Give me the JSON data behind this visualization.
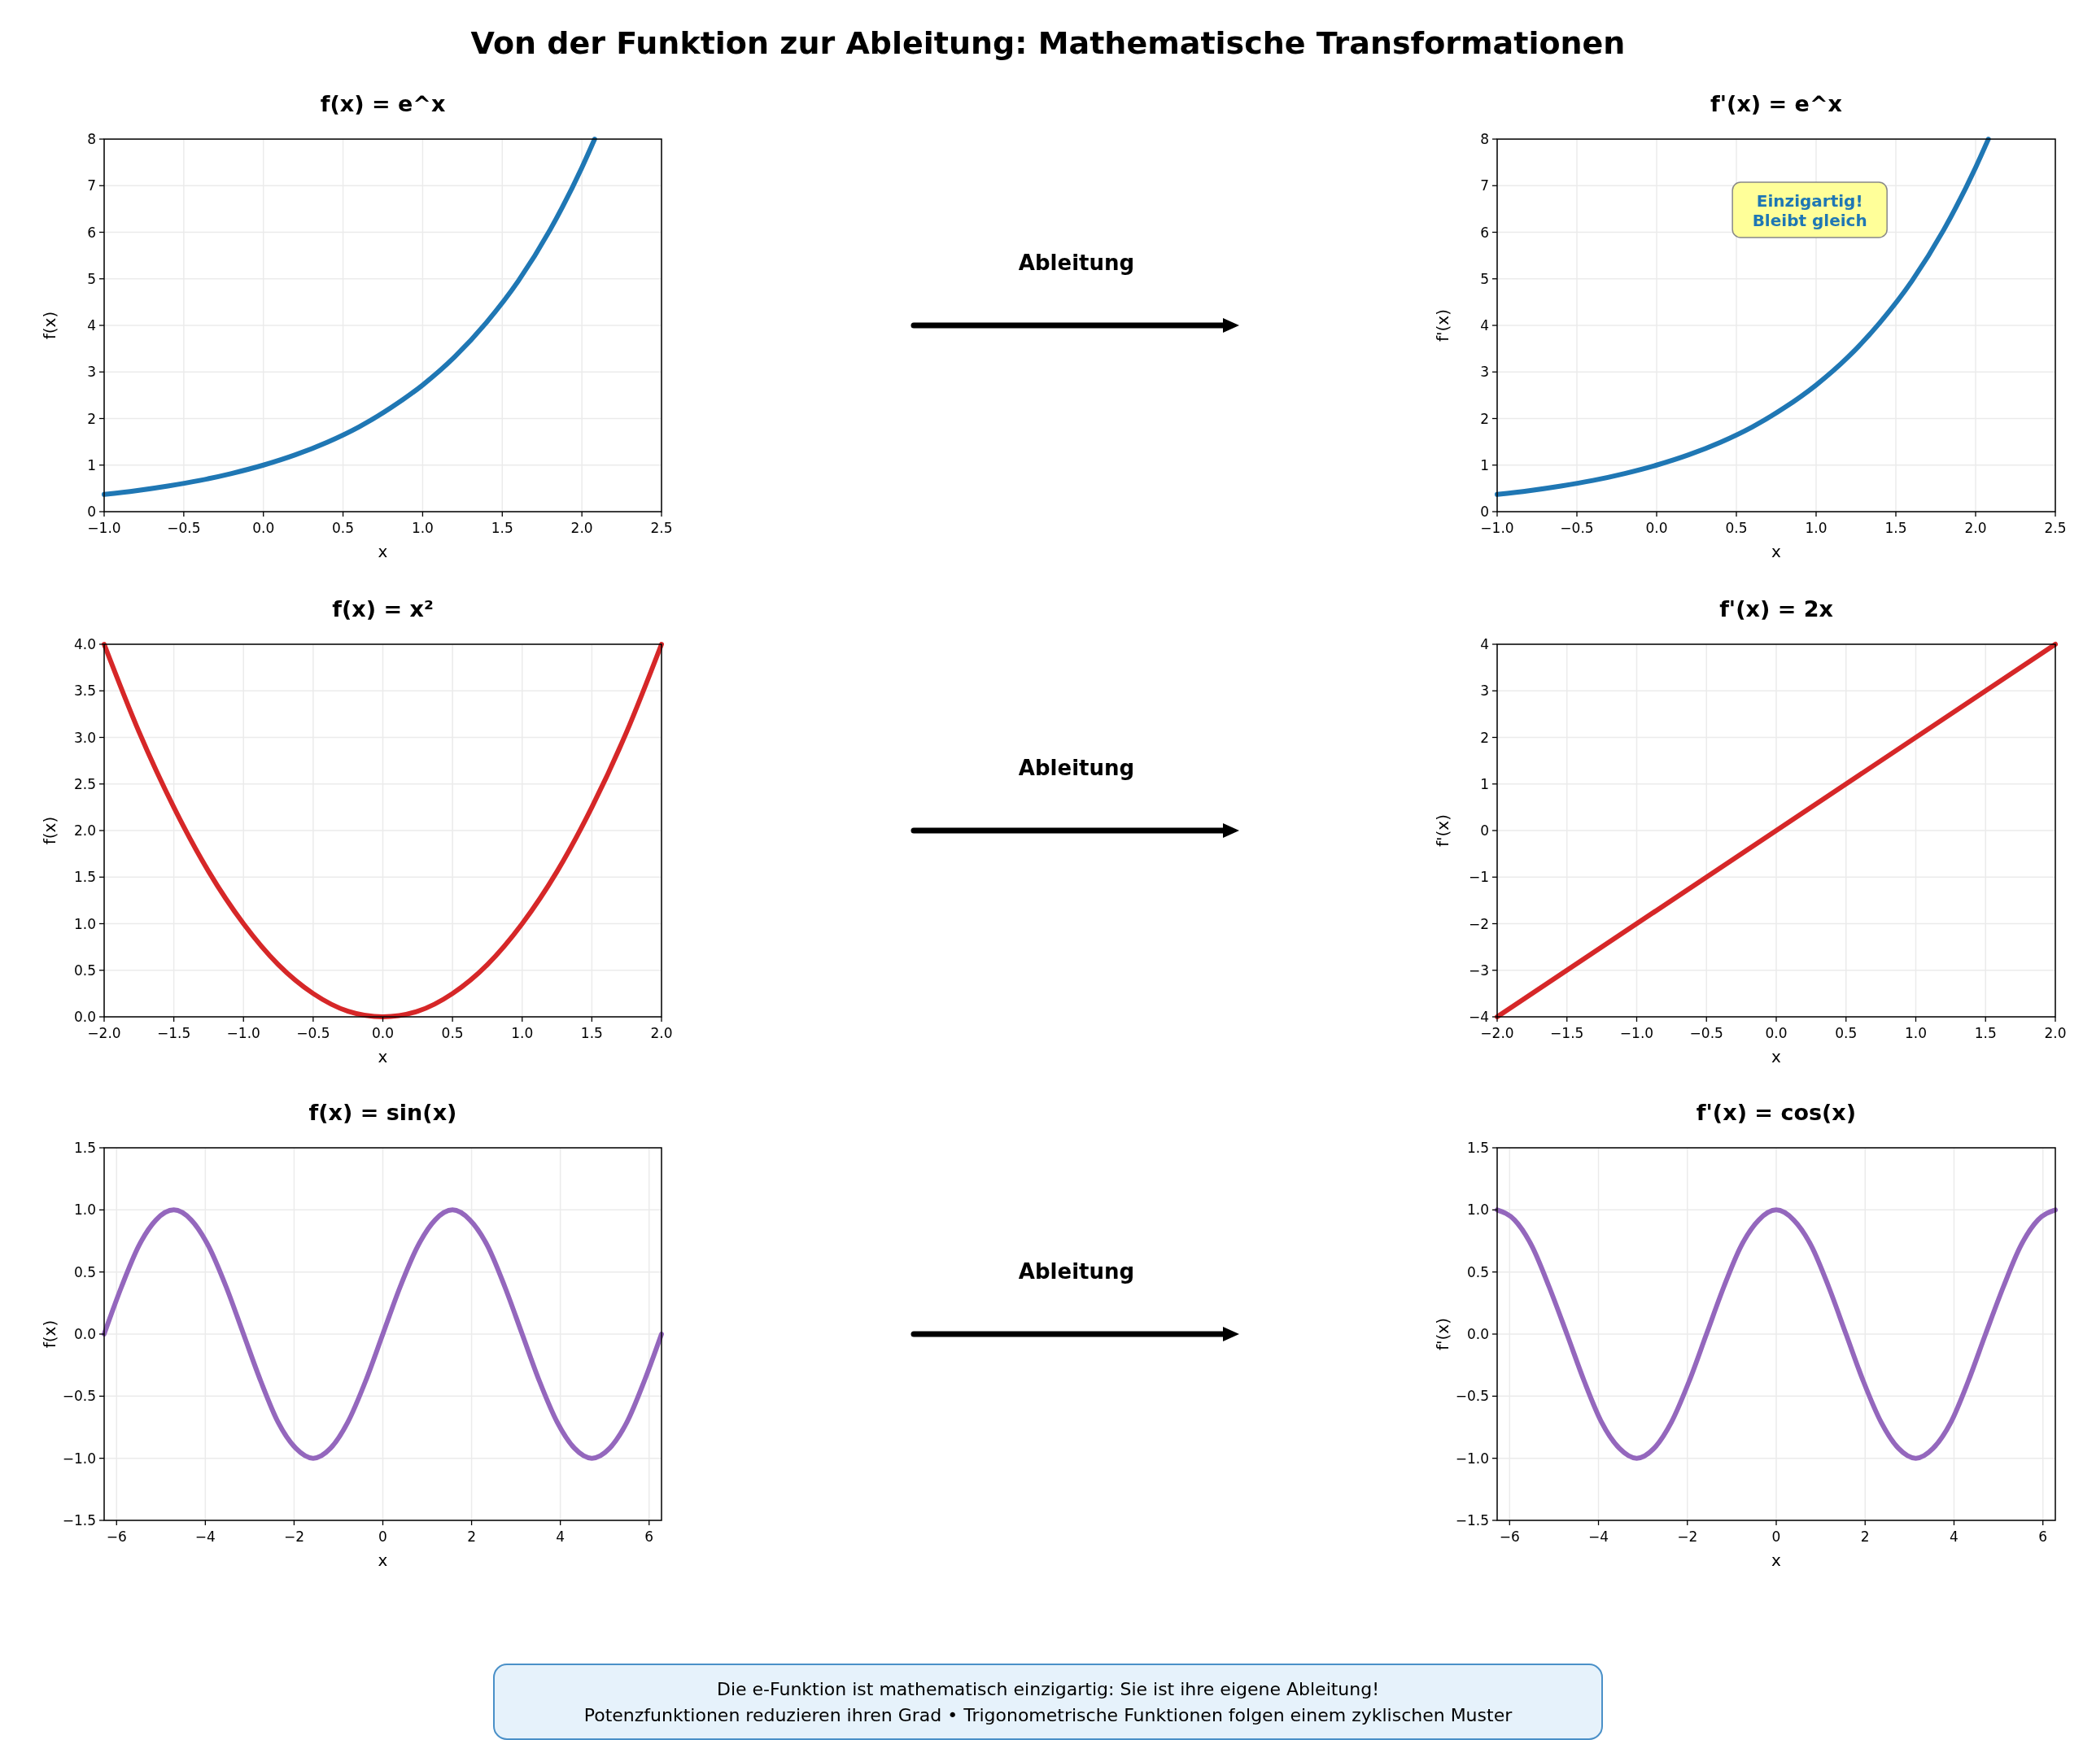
{
  "chart_data": [
    {
      "type": "other",
      "title": "Von der Funktion zur Ableitung: Mathematische Transformationen",
      "annotations": [
        "Die e-Funktion ist mathematisch einzigartig: Sie ist ihre eigene Ableitung!",
        "Potenzfunktionen reduzieren ihren Grad • Trigonometrische Funktionen folgen einem zyklischen Muster"
      ]
    },
    {
      "type": "line",
      "title": "f(x) = e^x",
      "xlabel": "x",
      "ylabel": "f(x)",
      "x": [
        -1,
        -0.8,
        -0.6,
        -0.4,
        -0.2,
        0,
        0.2,
        0.4,
        0.6,
        0.8,
        1,
        1.2,
        1.4,
        1.6,
        1.8,
        2,
        2.08
      ],
      "series": [
        {
          "color": "#1f77b4",
          "values": [
            0.37,
            0.45,
            0.55,
            0.67,
            0.82,
            1,
            1.22,
            1.49,
            1.82,
            2.23,
            2.72,
            3.32,
            4.06,
            4.95,
            6.05,
            7.39,
            8
          ]
        }
      ],
      "xlim": [
        -1,
        2.5
      ],
      "ylim": [
        0,
        8
      ],
      "xticks": [
        {
          "value": -1,
          "label": "−1.0"
        },
        {
          "value": -0.5,
          "label": "−0.5"
        },
        {
          "value": 0,
          "label": "0.0"
        },
        {
          "value": 0.5,
          "label": "0.5"
        },
        {
          "value": 1,
          "label": "1.0"
        },
        {
          "value": 1.5,
          "label": "1.5"
        },
        {
          "value": 2,
          "label": "2.0"
        },
        {
          "value": 2.5,
          "label": "2.5"
        }
      ],
      "yticks": [
        0,
        1,
        2,
        3,
        4,
        5,
        6,
        7,
        8
      ],
      "grid": true
    },
    {
      "type": "other",
      "annotations": [
        "Ableitung"
      ]
    },
    {
      "type": "line",
      "title": "f'(x) = e^x",
      "xlabel": "x",
      "ylabel": "f'(x)",
      "x": [
        -1,
        -0.8,
        -0.6,
        -0.4,
        -0.2,
        0,
        0.2,
        0.4,
        0.6,
        0.8,
        1,
        1.2,
        1.4,
        1.6,
        1.8,
        2,
        2.08
      ],
      "series": [
        {
          "color": "#1f77b4",
          "values": [
            0.37,
            0.45,
            0.55,
            0.67,
            0.82,
            1,
            1.22,
            1.49,
            1.82,
            2.23,
            2.72,
            3.32,
            4.06,
            4.95,
            6.05,
            7.39,
            8
          ]
        }
      ],
      "xlim": [
        -1,
        2.5
      ],
      "ylim": [
        0,
        8
      ],
      "xticks": [
        {
          "value": -1,
          "label": "−1.0"
        },
        {
          "value": -0.5,
          "label": "−0.5"
        },
        {
          "value": 0,
          "label": "0.0"
        },
        {
          "value": 0.5,
          "label": "0.5"
        },
        {
          "value": 1,
          "label": "1.0"
        },
        {
          "value": 1.5,
          "label": "1.5"
        },
        {
          "value": 2,
          "label": "2.0"
        },
        {
          "value": 2.5,
          "label": "2.5"
        }
      ],
      "yticks": [
        0,
        1,
        2,
        3,
        4,
        5,
        6,
        7,
        8
      ],
      "grid": true,
      "annotations": [
        "Einzigartig!\nBleibt gleich"
      ]
    },
    {
      "type": "line",
      "title": "f(x) = x²",
      "xlabel": "x",
      "ylabel": "f(x)",
      "x": [
        -2,
        -1.75,
        -1.5,
        -1.25,
        -1,
        -0.75,
        -0.5,
        -0.25,
        0,
        0.25,
        0.5,
        0.75,
        1,
        1.25,
        1.5,
        1.75,
        2
      ],
      "series": [
        {
          "color": "#d62728",
          "values": [
            4,
            3.06,
            2.25,
            1.56,
            1,
            0.56,
            0.25,
            0.06,
            0,
            0.06,
            0.25,
            0.56,
            1,
            1.56,
            2.25,
            3.06,
            4
          ]
        }
      ],
      "xlim": [
        -2,
        2
      ],
      "ylim": [
        0,
        4
      ],
      "xticks": [
        {
          "value": -2,
          "label": "−2.0"
        },
        {
          "value": -1.5,
          "label": "−1.5"
        },
        {
          "value": -1,
          "label": "−1.0"
        },
        {
          "value": -0.5,
          "label": "−0.5"
        },
        {
          "value": 0,
          "label": "0.0"
        },
        {
          "value": 0.5,
          "label": "0.5"
        },
        {
          "value": 1,
          "label": "1.0"
        },
        {
          "value": 1.5,
          "label": "1.5"
        },
        {
          "value": 2,
          "label": "2.0"
        }
      ],
      "yticks": [
        {
          "value": 0,
          "label": "0.0"
        },
        0.5,
        {
          "value": 1,
          "label": "1.0"
        },
        1.5,
        {
          "value": 2,
          "label": "2.0"
        },
        2.5,
        {
          "value": 3,
          "label": "3.0"
        },
        3.5,
        {
          "value": 4,
          "label": "4.0"
        }
      ],
      "grid": true
    },
    {
      "type": "other",
      "annotations": [
        "Ableitung"
      ]
    },
    {
      "type": "line",
      "title": "f'(x) = 2x",
      "xlabel": "x",
      "ylabel": "f'(x)",
      "x": [
        -2,
        2
      ],
      "series": [
        {
          "color": "#d62728",
          "values": [
            -4,
            4
          ]
        }
      ],
      "xlim": [
        -2,
        2
      ],
      "ylim": [
        -4,
        4
      ],
      "xticks": [
        {
          "value": -2,
          "label": "−2.0"
        },
        {
          "value": -1.5,
          "label": "−1.5"
        },
        {
          "value": -1,
          "label": "−1.0"
        },
        {
          "value": -0.5,
          "label": "−0.5"
        },
        {
          "value": 0,
          "label": "0.0"
        },
        {
          "value": 0.5,
          "label": "0.5"
        },
        {
          "value": 1,
          "label": "1.0"
        },
        {
          "value": 1.5,
          "label": "1.5"
        },
        {
          "value": 2,
          "label": "2.0"
        }
      ],
      "yticks": [
        {
          "value": -4,
          "label": "−4"
        },
        {
          "value": -3,
          "label": "−3"
        },
        {
          "value": -2,
          "label": "−2"
        },
        {
          "value": -1,
          "label": "−1"
        },
        0,
        1,
        2,
        3,
        4
      ],
      "grid": true
    },
    {
      "type": "line",
      "title": "f(x) = sin(x)",
      "xlabel": "x",
      "ylabel": "f(x)",
      "x": [
        -6.28,
        -5.89,
        -5.5,
        -5.11,
        -4.71,
        -4.32,
        -3.93,
        -3.53,
        -3.14,
        -2.75,
        -2.36,
        -1.96,
        -1.57,
        -1.18,
        -0.79,
        -0.39,
        0,
        0.39,
        0.79,
        1.18,
        1.57,
        1.96,
        2.36,
        2.75,
        3.14,
        3.53,
        3.93,
        4.32,
        4.71,
        5.11,
        5.5,
        5.89,
        6.28
      ],
      "series": [
        {
          "color": "#9467bd",
          "values": [
            0,
            0.38,
            0.71,
            0.92,
            1,
            0.92,
            0.71,
            0.38,
            0,
            -0.38,
            -0.71,
            -0.92,
            -1,
            -0.92,
            -0.71,
            -0.38,
            0,
            0.38,
            0.71,
            0.92,
            1,
            0.92,
            0.71,
            0.38,
            0,
            -0.38,
            -0.71,
            -0.92,
            -1,
            -0.92,
            -0.71,
            -0.38,
            0
          ]
        }
      ],
      "xlim": [
        -6.28,
        6.28
      ],
      "ylim": [
        -1.5,
        1.5
      ],
      "xticks": [
        {
          "value": -6,
          "label": "−6"
        },
        {
          "value": -4,
          "label": "−4"
        },
        {
          "value": -2,
          "label": "−2"
        },
        0,
        2,
        4,
        6
      ],
      "yticks": [
        {
          "value": -1.5,
          "label": "−1.5"
        },
        {
          "value": -1,
          "label": "−1.0"
        },
        {
          "value": -0.5,
          "label": "−0.5"
        },
        {
          "value": 0,
          "label": "0.0"
        },
        0.5,
        {
          "value": 1,
          "label": "1.0"
        },
        1.5
      ],
      "grid": true
    },
    {
      "type": "other",
      "annotations": [
        "Ableitung"
      ]
    },
    {
      "type": "line",
      "title": "f'(x) = cos(x)",
      "xlabel": "x",
      "ylabel": "f'(x)",
      "x": [
        -6.28,
        -5.89,
        -5.5,
        -5.11,
        -4.71,
        -4.32,
        -3.93,
        -3.53,
        -3.14,
        -2.75,
        -2.36,
        -1.96,
        -1.57,
        -1.18,
        -0.79,
        -0.39,
        0,
        0.39,
        0.79,
        1.18,
        1.57,
        1.96,
        2.36,
        2.75,
        3.14,
        3.53,
        3.93,
        4.32,
        4.71,
        5.11,
        5.5,
        5.89,
        6.28
      ],
      "series": [
        {
          "color": "#9467bd",
          "values": [
            1,
            0.92,
            0.71,
            0.38,
            0,
            -0.38,
            -0.71,
            -0.92,
            -1,
            -0.92,
            -0.71,
            -0.38,
            0,
            0.38,
            0.71,
            0.92,
            1,
            0.92,
            0.71,
            0.38,
            0,
            -0.38,
            -0.71,
            -0.92,
            -1,
            -0.92,
            -0.71,
            -0.38,
            0,
            0.38,
            0.71,
            0.92,
            1
          ]
        }
      ],
      "xlim": [
        -6.28,
        6.28
      ],
      "ylim": [
        -1.5,
        1.5
      ],
      "xticks": [
        {
          "value": -6,
          "label": "−6"
        },
        {
          "value": -4,
          "label": "−4"
        },
        {
          "value": -2,
          "label": "−2"
        },
        0,
        2,
        4,
        6
      ],
      "yticks": [
        {
          "value": -1.5,
          "label": "−1.5"
        },
        {
          "value": -1,
          "label": "−1.0"
        },
        {
          "value": -0.5,
          "label": "−0.5"
        },
        {
          "value": 0,
          "label": "0.0"
        },
        0.5,
        {
          "value": 1,
          "label": "1.0"
        },
        1.5
      ],
      "grid": true
    }
  ]
}
